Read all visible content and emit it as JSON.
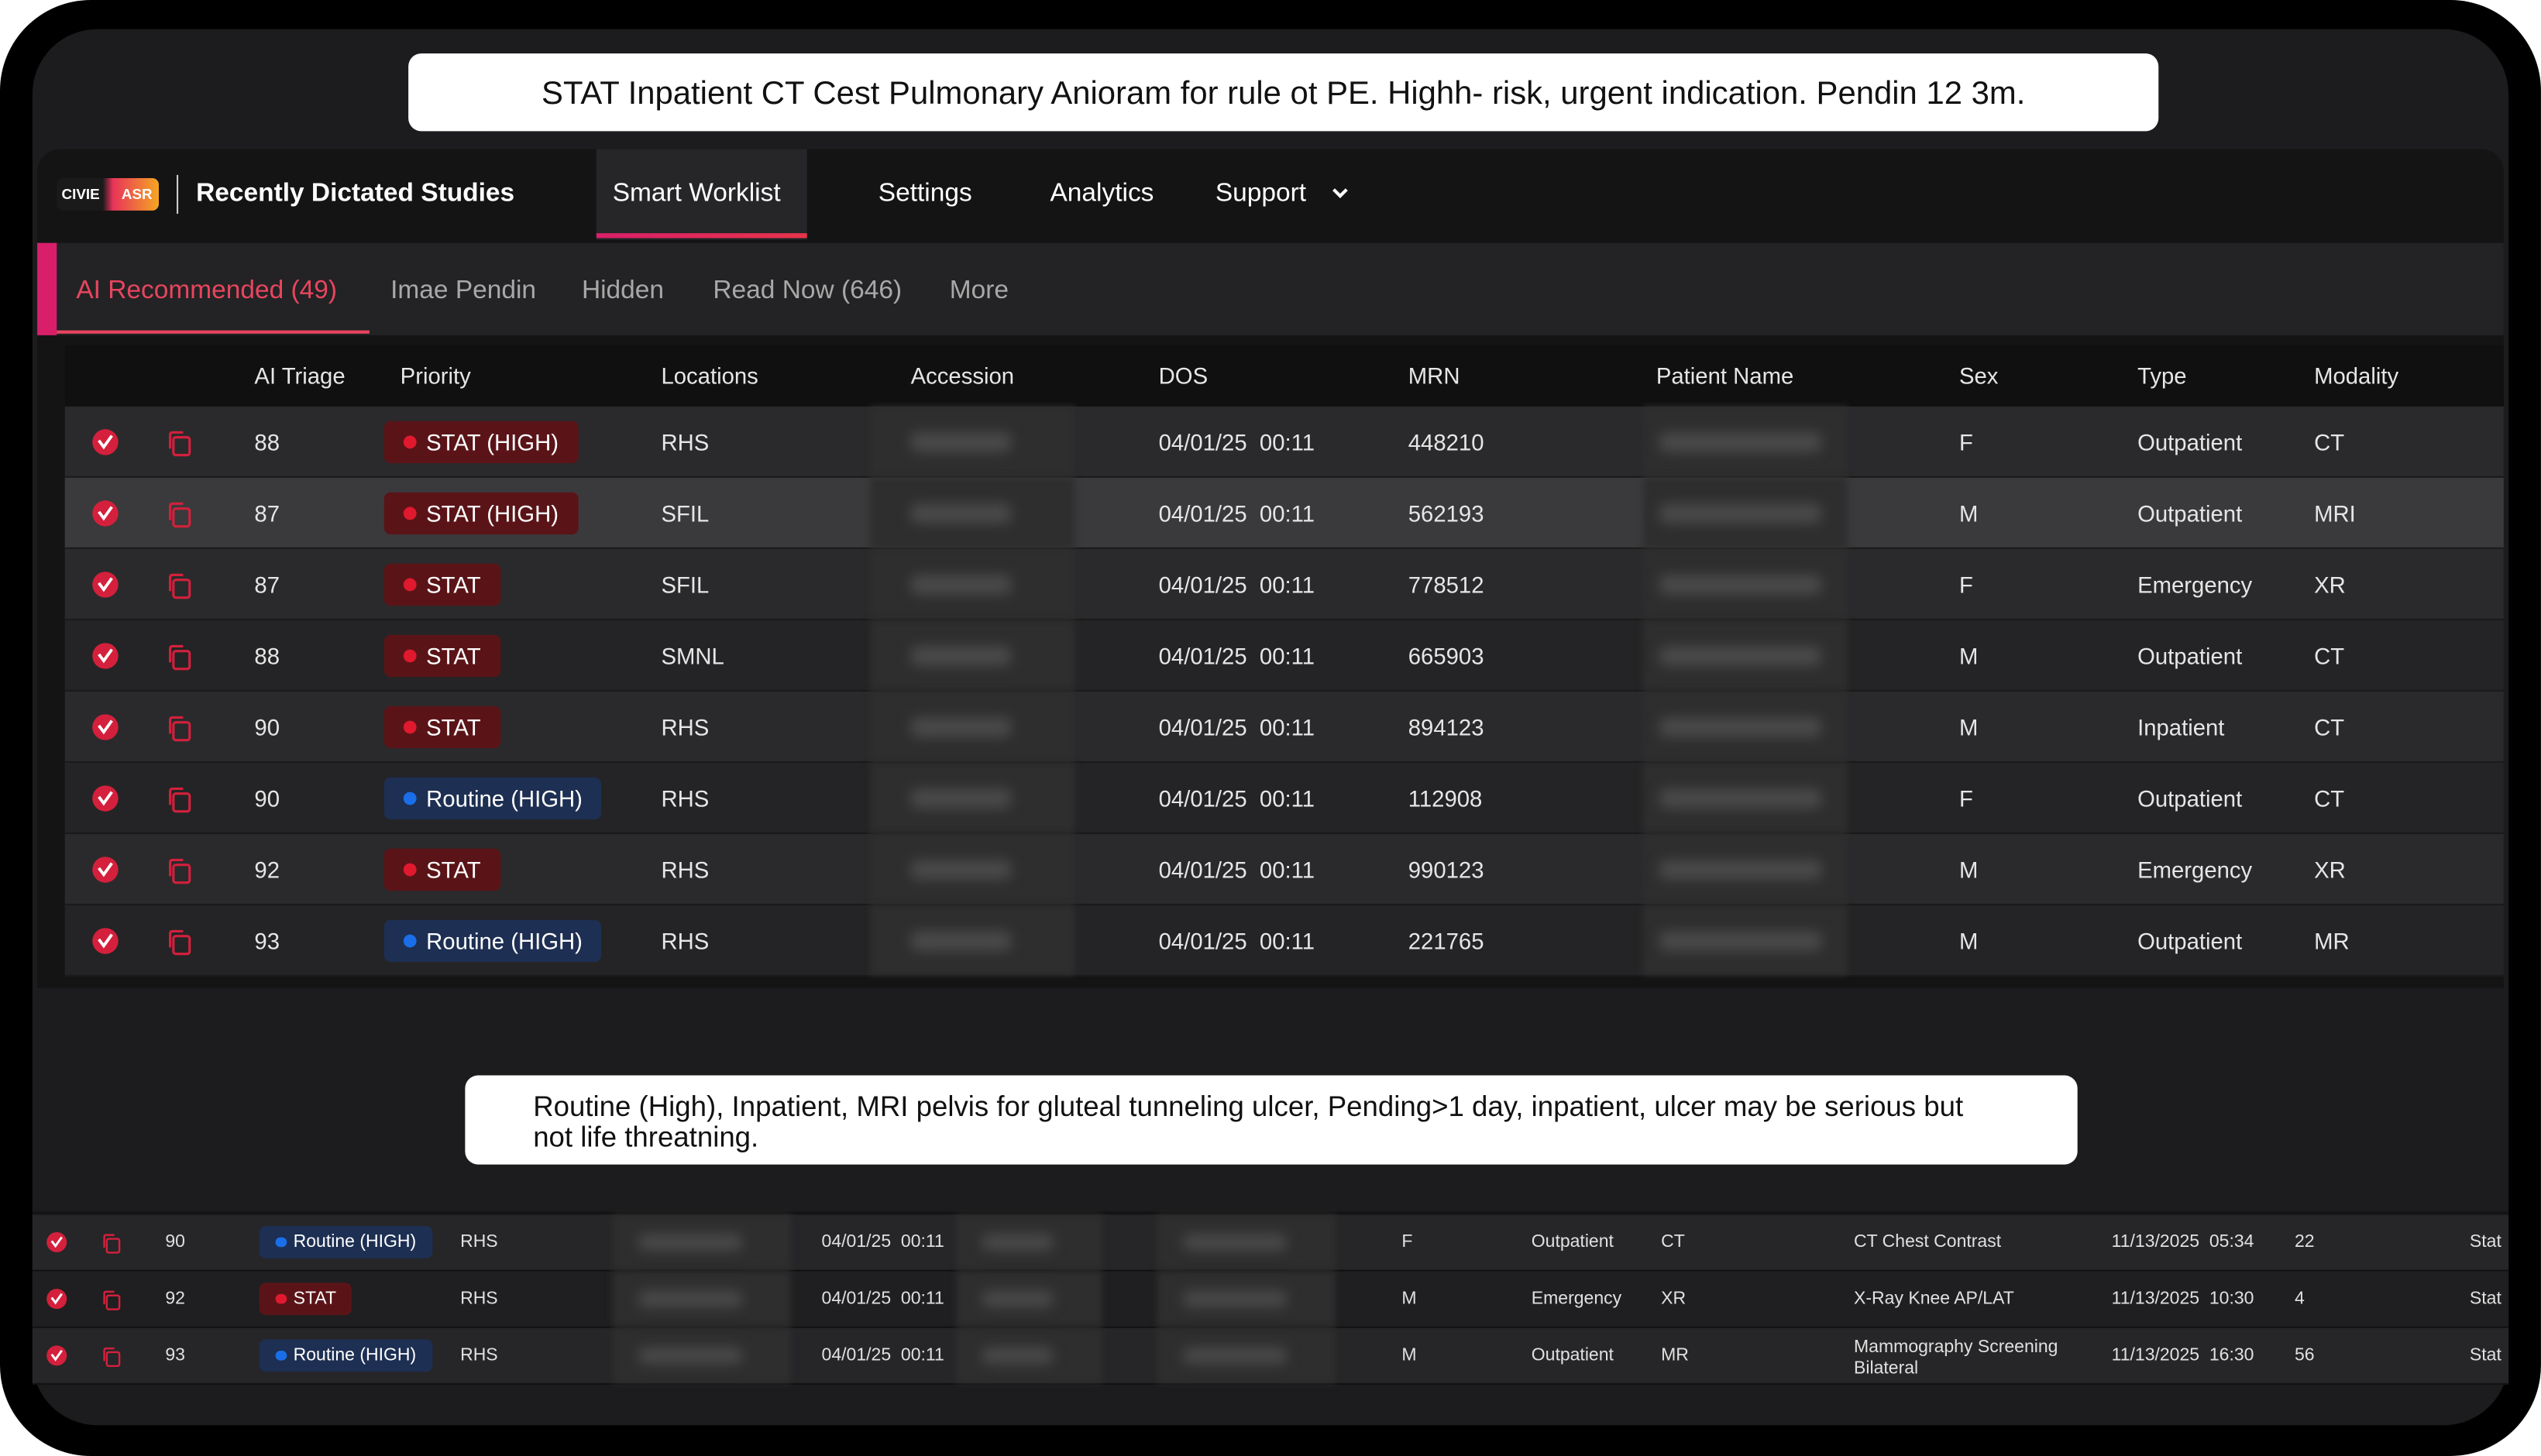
{
  "banner_top": "STAT Inpatient CT Cest Pulmonary Anioram for rule ot PE. Highh- risk, urgent indication. Pendin 12 3m.",
  "logo": {
    "left": "CIVIE",
    "right": "ASR"
  },
  "nav": {
    "title": "Recently Dictated Studies",
    "items": [
      "Smart Worklist",
      "Settings",
      "Analytics",
      "Support"
    ]
  },
  "subtabs": [
    "AI Recommended (49)",
    "Imae Pendin",
    "Hidden",
    "Read Now (646)",
    "More"
  ],
  "table": {
    "headers": [
      "AI Triage",
      "Priority",
      "Locations",
      "Accession",
      "DOS",
      "MRN",
      "Patient Name",
      "Sex",
      "Type",
      "Modality"
    ],
    "selected_row": 1,
    "rows": [
      {
        "triage": 88,
        "priority": "STAT (HIGH)",
        "badge_color": "#e0192e",
        "location": "RHS",
        "dos": "04/01/25  00:11",
        "mrn": 448210,
        "sex": "F",
        "type": "Outpatient",
        "modality": "CT"
      },
      {
        "triage": 87,
        "priority": "STAT (HIGH)",
        "badge_color": "#e0192e",
        "location": "SFIL",
        "dos": "04/01/25  00:11",
        "mrn": 562193,
        "sex": "M",
        "type": "Outpatient",
        "modality": "MRI"
      },
      {
        "triage": 87,
        "priority": "STAT",
        "badge_color": "#e0192e",
        "location": "SFIL",
        "dos": "04/01/25  00:11",
        "mrn": 778512,
        "sex": "F",
        "type": "Emergency",
        "modality": "XR"
      },
      {
        "triage": 88,
        "priority": "STAT",
        "badge_color": "#e0192e",
        "location": "SMNL",
        "dos": "04/01/25  00:11",
        "mrn": 665903,
        "sex": "M",
        "type": "Outpatient",
        "modality": "CT"
      },
      {
        "triage": 90,
        "priority": "STAT",
        "badge_color": "#e0192e",
        "location": "RHS",
        "dos": "04/01/25  00:11",
        "mrn": 894123,
        "sex": "M",
        "type": "Inpatient",
        "modality": "CT"
      },
      {
        "triage": 90,
        "priority": "Routine (HIGH)",
        "badge_color": "#1a6fe8",
        "location": "RHS",
        "dos": "04/01/25  00:11",
        "mrn": 112908,
        "sex": "F",
        "type": "Outpatient",
        "modality": "CT"
      },
      {
        "triage": 92,
        "priority": "STAT",
        "badge_color": "#e0192e",
        "location": "RHS",
        "dos": "04/01/25  00:11",
        "mrn": 990123,
        "sex": "M",
        "type": "Emergency",
        "modality": "XR"
      },
      {
        "triage": 93,
        "priority": "Routine (HIGH)",
        "badge_color": "#1a6fe8",
        "location": "RHS",
        "dos": "04/01/25  00:11",
        "mrn": 221765,
        "sex": "M",
        "type": "Outpatient",
        "modality": "MR"
      }
    ]
  },
  "annotation": "Routine (High), Inpatient, MRI pelvis for gluteal tunneling ulcer, Pending>1 day, inpatient, ulcer may be serious but not life threatning.",
  "lower_table": {
    "rows": [
      {
        "triage": 90,
        "priority": "Routine (HIGH)",
        "badge_color": "#1a6fe8",
        "location": "RHS",
        "dos": "04/01/25  00:11",
        "sex": "F",
        "type": "Outpatient",
        "modality": "CT",
        "description": "CT Chest Contrast",
        "datetime": "11/13/2025  05:34",
        "count": 22,
        "status": "Stat"
      },
      {
        "triage": 92,
        "priority": "STAT",
        "badge_color": "#e0192e",
        "location": "RHS",
        "dos": "04/01/25  00:11",
        "sex": "M",
        "type": "Emergency",
        "modality": "XR",
        "description": "X-Ray Knee AP/LAT",
        "datetime": "11/13/2025  10:30",
        "count": 4,
        "status": "Stat"
      },
      {
        "triage": 93,
        "priority": "Routine (HIGH)",
        "badge_color": "#1a6fe8",
        "location": "RHS",
        "dos": "04/01/25  00:11",
        "sex": "M",
        "type": "Outpatient",
        "modality": "MR",
        "description": "Mammography Screening Bilateral",
        "datetime": "11/13/2025  16:30",
        "count": 56,
        "status": "Stat"
      }
    ]
  }
}
